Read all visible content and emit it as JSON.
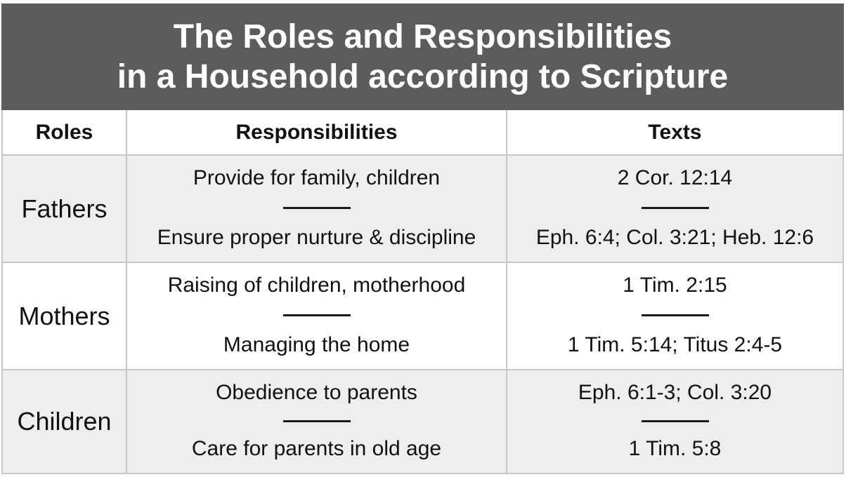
{
  "banner": {
    "title_line1": "The Roles and Responsibilities",
    "title_line2": "in a Household according to Scripture",
    "bg_color": "#5c5c5c",
    "text_color": "#ffffff"
  },
  "table": {
    "headers": {
      "roles": "Roles",
      "responsibilities": "Responsibilities",
      "texts": "Texts"
    },
    "rows": [
      {
        "role": "Fathers",
        "responsibilities": [
          "Provide for family, children",
          "Ensure proper nurture & discipline"
        ],
        "texts": [
          "2 Cor. 12:14",
          "Eph. 6:4; Col. 3:21; Heb. 12:6"
        ],
        "row_bg": "#eeeeee"
      },
      {
        "role": "Mothers",
        "responsibilities": [
          "Raising of children, motherhood",
          "Managing the home"
        ],
        "texts": [
          "1 Tim. 2:15",
          "1 Tim. 5:14; Titus 2:4-5"
        ],
        "row_bg": "#ffffff"
      },
      {
        "role": "Children",
        "responsibilities": [
          "Obedience to parents",
          "Care for parents in old age"
        ],
        "texts": [
          "Eph. 6:1-3; Col. 3:20",
          "1 Tim. 5:8"
        ],
        "row_bg": "#eeeeee"
      }
    ],
    "border_color": "#c7c7c7",
    "divider_color": "#1a1a1a",
    "text_color": "#111111"
  }
}
